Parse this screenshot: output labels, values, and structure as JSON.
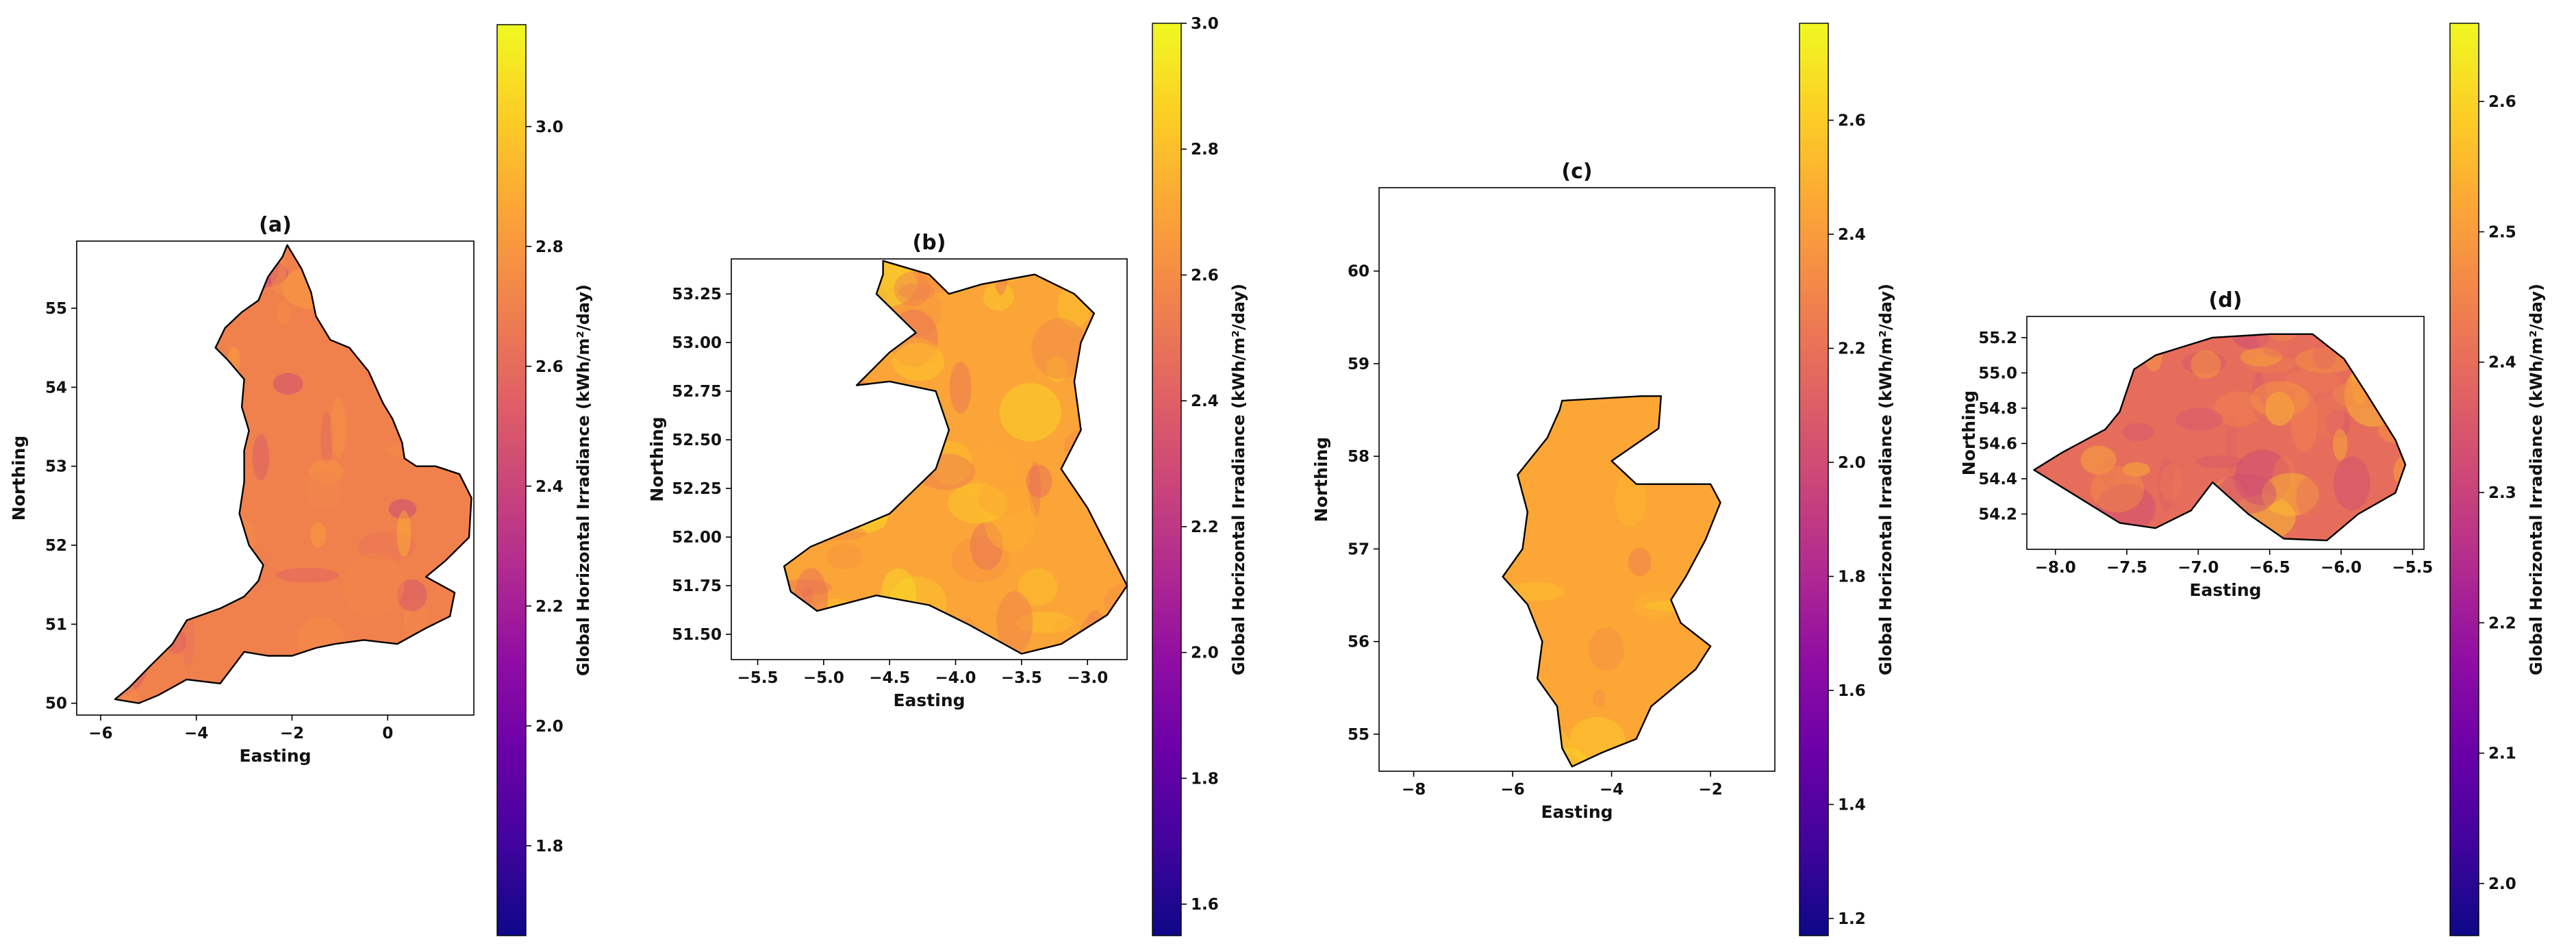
{
  "colormap": [
    "#0d0887",
    "#41049d",
    "#6a00a8",
    "#8f0da4",
    "#b12a90",
    "#cc4778",
    "#e16462",
    "#f2844b",
    "#fca636",
    "#fcce25",
    "#f0f921"
  ],
  "outline_color": "#000000",
  "chart_data": [
    {
      "type": "heatmap",
      "title": "(a)",
      "xlabel": "Easting",
      "ylabel": "Northing",
      "xlim": [
        -6.5,
        1.8
      ],
      "ylim": [
        49.85,
        55.85
      ],
      "xticks": [
        -6,
        -4,
        -2,
        0
      ],
      "xtick_labels": [
        "−6",
        "−4",
        "−2",
        "0"
      ],
      "yticks": [
        50,
        51,
        52,
        53,
        54,
        55
      ],
      "ytick_labels": [
        "50",
        "51",
        "52",
        "53",
        "54",
        "55"
      ],
      "colorbar": {
        "label": "Global Horizontal Irradiance (kWh/m²/day)",
        "range": [
          1.65,
          3.17
        ],
        "ticks": [
          1.8,
          2.0,
          2.2,
          2.4,
          2.6,
          2.8,
          3.0
        ],
        "tick_labels": [
          "1.8",
          "2.0",
          "2.2",
          "2.4",
          "2.6",
          "2.8",
          "3.0"
        ]
      },
      "region_mean": 2.7,
      "region_range": [
        2.35,
        2.95
      ],
      "outline": [
        [
          -2.1,
          55.8
        ],
        [
          -1.8,
          55.5
        ],
        [
          -1.6,
          55.2
        ],
        [
          -1.5,
          54.9
        ],
        [
          -1.2,
          54.6
        ],
        [
          -0.8,
          54.5
        ],
        [
          -0.4,
          54.2
        ],
        [
          -0.1,
          53.8
        ],
        [
          0.1,
          53.6
        ],
        [
          0.3,
          53.3
        ],
        [
          0.35,
          53.1
        ],
        [
          0.6,
          53.0
        ],
        [
          1.0,
          53.0
        ],
        [
          1.5,
          52.9
        ],
        [
          1.75,
          52.6
        ],
        [
          1.7,
          52.1
        ],
        [
          1.2,
          51.8
        ],
        [
          0.8,
          51.6
        ],
        [
          1.4,
          51.4
        ],
        [
          1.3,
          51.1
        ],
        [
          0.8,
          50.95
        ],
        [
          0.2,
          50.75
        ],
        [
          -0.5,
          50.8
        ],
        [
          -1.1,
          50.75
        ],
        [
          -1.5,
          50.7
        ],
        [
          -2.0,
          50.6
        ],
        [
          -2.5,
          50.6
        ],
        [
          -3.0,
          50.65
        ],
        [
          -3.5,
          50.25
        ],
        [
          -4.2,
          50.3
        ],
        [
          -4.8,
          50.1
        ],
        [
          -5.2,
          50.0
        ],
        [
          -5.7,
          50.05
        ],
        [
          -5.4,
          50.2
        ],
        [
          -5.0,
          50.45
        ],
        [
          -4.5,
          50.75
        ],
        [
          -4.2,
          51.05
        ],
        [
          -3.5,
          51.2
        ],
        [
          -3.0,
          51.35
        ],
        [
          -2.7,
          51.55
        ],
        [
          -2.6,
          51.75
        ],
        [
          -2.9,
          52.0
        ],
        [
          -3.1,
          52.4
        ],
        [
          -3.0,
          52.8
        ],
        [
          -3.0,
          53.2
        ],
        [
          -2.9,
          53.45
        ],
        [
          -3.05,
          53.75
        ],
        [
          -3.0,
          54.1
        ],
        [
          -3.35,
          54.35
        ],
        [
          -3.6,
          54.5
        ],
        [
          -3.4,
          54.75
        ],
        [
          -3.05,
          54.95
        ],
        [
          -2.7,
          55.1
        ],
        [
          -2.5,
          55.4
        ],
        [
          -2.2,
          55.65
        ]
      ]
    },
    {
      "type": "heatmap",
      "title": "(b)",
      "xlabel": "Easting",
      "ylabel": "Northing",
      "xlim": [
        -5.7,
        -2.7
      ],
      "ylim": [
        51.37,
        53.43
      ],
      "xticks": [
        -5.5,
        -5.0,
        -4.5,
        -4.0,
        -3.5,
        -3.0
      ],
      "xtick_labels": [
        "−5.5",
        "−5.0",
        "−4.5",
        "−4.0",
        "−3.5",
        "−3.0"
      ],
      "yticks": [
        51.5,
        51.75,
        52.0,
        52.25,
        52.5,
        52.75,
        53.0,
        53.25
      ],
      "ytick_labels": [
        "51.50",
        "51.75",
        "52.00",
        "52.25",
        "52.50",
        "52.75",
        "53.00",
        "53.25"
      ],
      "colorbar": {
        "label": "Global Horizontal Irradiance (kWh/m²/day)",
        "range": [
          1.55,
          3.0
        ],
        "ticks": [
          1.6,
          1.8,
          2.0,
          2.2,
          2.4,
          2.6,
          2.8,
          3.0
        ],
        "tick_labels": [
          "1.6",
          "1.8",
          "2.0",
          "2.2",
          "2.4",
          "2.6",
          "2.8",
          "3.0"
        ]
      },
      "region_mean": 2.7,
      "region_range": [
        2.45,
        2.95
      ],
      "outline": [
        [
          -4.55,
          53.42
        ],
        [
          -4.2,
          53.35
        ],
        [
          -4.05,
          53.25
        ],
        [
          -3.8,
          53.3
        ],
        [
          -3.4,
          53.35
        ],
        [
          -3.1,
          53.25
        ],
        [
          -2.95,
          53.15
        ],
        [
          -3.05,
          53.0
        ],
        [
          -3.1,
          52.8
        ],
        [
          -3.05,
          52.55
        ],
        [
          -3.2,
          52.35
        ],
        [
          -3.0,
          52.15
        ],
        [
          -2.85,
          51.95
        ],
        [
          -2.7,
          51.75
        ],
        [
          -2.85,
          51.6
        ],
        [
          -3.2,
          51.45
        ],
        [
          -3.5,
          51.4
        ],
        [
          -3.9,
          51.55
        ],
        [
          -4.2,
          51.65
        ],
        [
          -4.6,
          51.7
        ],
        [
          -5.05,
          51.62
        ],
        [
          -5.25,
          51.72
        ],
        [
          -5.3,
          51.85
        ],
        [
          -5.1,
          51.95
        ],
        [
          -4.5,
          52.12
        ],
        [
          -4.15,
          52.35
        ],
        [
          -4.05,
          52.55
        ],
        [
          -4.15,
          52.75
        ],
        [
          -4.5,
          52.8
        ],
        [
          -4.75,
          52.78
        ],
        [
          -4.5,
          52.95
        ],
        [
          -4.3,
          53.05
        ],
        [
          -4.6,
          53.25
        ],
        [
          -4.55,
          53.35
        ]
      ]
    },
    {
      "type": "heatmap",
      "title": "(c)",
      "xlabel": "Easting",
      "ylabel": "Northing",
      "xlim": [
        -8.7,
        -0.7
      ],
      "ylim": [
        54.6,
        60.9
      ],
      "xticks": [
        -8,
        -6,
        -4,
        -2
      ],
      "xtick_labels": [
        "−8",
        "−6",
        "−4",
        "−2"
      ],
      "yticks": [
        55,
        56,
        57,
        58,
        59,
        60
      ],
      "ytick_labels": [
        "55",
        "56",
        "57",
        "58",
        "59",
        "60"
      ],
      "colorbar": {
        "label": "Global Horizontal Irradiance (kWh/m²/day)",
        "range": [
          1.17,
          2.77
        ],
        "ticks": [
          1.2,
          1.4,
          1.6,
          1.8,
          2.0,
          2.2,
          2.4,
          2.6
        ],
        "tick_labels": [
          "1.2",
          "1.4",
          "1.6",
          "1.8",
          "2.0",
          "2.2",
          "2.4",
          "2.6"
        ]
      },
      "region_mean": 2.45,
      "region_range": [
        2.2,
        2.7
      ],
      "outline": [
        [
          -5.0,
          58.6
        ],
        [
          -3.4,
          58.65
        ],
        [
          -3.0,
          58.65
        ],
        [
          -3.05,
          58.3
        ],
        [
          -4.0,
          57.95
        ],
        [
          -3.5,
          57.7
        ],
        [
          -2.0,
          57.7
        ],
        [
          -1.8,
          57.5
        ],
        [
          -2.1,
          57.1
        ],
        [
          -2.5,
          56.7
        ],
        [
          -2.8,
          56.45
        ],
        [
          -2.6,
          56.2
        ],
        [
          -2.0,
          55.95
        ],
        [
          -2.3,
          55.7
        ],
        [
          -3.2,
          55.3
        ],
        [
          -3.5,
          54.95
        ],
        [
          -4.2,
          54.8
        ],
        [
          -4.8,
          54.65
        ],
        [
          -5.0,
          54.85
        ],
        [
          -5.1,
          55.3
        ],
        [
          -5.5,
          55.6
        ],
        [
          -5.4,
          56.0
        ],
        [
          -5.7,
          56.4
        ],
        [
          -6.2,
          56.7
        ],
        [
          -5.8,
          57.0
        ],
        [
          -5.7,
          57.4
        ],
        [
          -5.9,
          57.8
        ],
        [
          -5.3,
          58.2
        ],
        [
          -5.05,
          58.5
        ]
      ]
    },
    {
      "type": "heatmap",
      "title": "(d)",
      "xlabel": "Easting",
      "ylabel": "Northing",
      "xlim": [
        -8.2,
        -5.42
      ],
      "ylim": [
        54.0,
        55.32
      ],
      "xticks": [
        -8.0,
        -7.5,
        -7.0,
        -6.5,
        -6.0,
        -5.5
      ],
      "xtick_labels": [
        "−8.0",
        "−7.5",
        "−7.0",
        "−6.5",
        "−6.0",
        "−5.5"
      ],
      "yticks": [
        54.2,
        54.4,
        54.6,
        54.8,
        55.0,
        55.2
      ],
      "ytick_labels": [
        "54.2",
        "54.4",
        "54.6",
        "54.8",
        "55.0",
        "55.2"
      ],
      "colorbar": {
        "label": "Global Horizontal Irradiance (kWh/m²/day)",
        "range": [
          1.96,
          2.66
        ],
        "ticks": [
          2.0,
          2.1,
          2.2,
          2.3,
          2.4,
          2.5,
          2.6
        ],
        "tick_labels": [
          "2.0",
          "2.1",
          "2.2",
          "2.3",
          "2.4",
          "2.5",
          "2.6"
        ]
      },
      "region_mean": 2.4,
      "region_range": [
        2.3,
        2.6
      ],
      "outline": [
        [
          -7.3,
          55.1
        ],
        [
          -6.9,
          55.2
        ],
        [
          -6.5,
          55.22
        ],
        [
          -6.2,
          55.22
        ],
        [
          -5.98,
          55.08
        ],
        [
          -5.82,
          54.88
        ],
        [
          -5.62,
          54.62
        ],
        [
          -5.55,
          54.48
        ],
        [
          -5.62,
          54.32
        ],
        [
          -5.88,
          54.2
        ],
        [
          -6.1,
          54.05
        ],
        [
          -6.4,
          54.06
        ],
        [
          -6.65,
          54.2
        ],
        [
          -6.9,
          54.38
        ],
        [
          -7.05,
          54.22
        ],
        [
          -7.3,
          54.12
        ],
        [
          -7.55,
          54.15
        ],
        [
          -7.85,
          54.3
        ],
        [
          -8.15,
          54.45
        ],
        [
          -7.95,
          54.55
        ],
        [
          -7.65,
          54.68
        ],
        [
          -7.55,
          54.78
        ],
        [
          -7.45,
          55.02
        ]
      ]
    }
  ]
}
